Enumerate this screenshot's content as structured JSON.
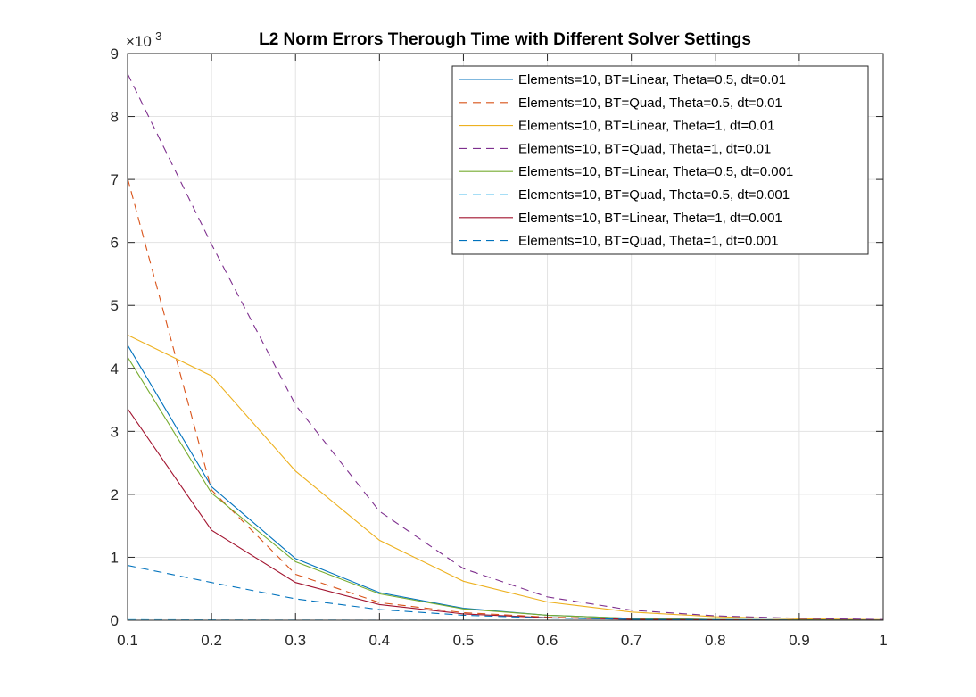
{
  "chart_data": {
    "type": "line",
    "title": "L2 Norm Errors Therough Time with Different Solver Settings",
    "xlabel": "",
    "ylabel": "",
    "y_exponent_label": "×10",
    "y_exponent_power": "-3",
    "xlim": [
      0.1,
      1
    ],
    "ylim": [
      0,
      9
    ],
    "x_tick_labels": [
      "0.1",
      "0.2",
      "0.3",
      "0.4",
      "0.5",
      "0.6",
      "0.7",
      "0.8",
      "0.9",
      "1"
    ],
    "x_tick_values": [
      0.1,
      0.2,
      0.3,
      0.4,
      0.5,
      0.6,
      0.7,
      0.8,
      0.9,
      1.0
    ],
    "y_tick_labels": [
      "0",
      "1",
      "2",
      "3",
      "4",
      "5",
      "6",
      "7",
      "8",
      "9"
    ],
    "y_tick_values": [
      0,
      1,
      2,
      3,
      4,
      5,
      6,
      7,
      8,
      9
    ],
    "grid": true,
    "legend_position": "top-right",
    "x": [
      0.1,
      0.2,
      0.3,
      0.4,
      0.5,
      0.6,
      0.7,
      0.8,
      0.9,
      1.0
    ],
    "series": [
      {
        "name": "Elements=10, BT=Linear, Theta=0.5, dt=0.01",
        "color": "#0072BD",
        "dash": "solid",
        "values": [
          4.37,
          2.12,
          0.98,
          0.44,
          0.19,
          0.08,
          0.03,
          0.013,
          0.005,
          0.002
        ]
      },
      {
        "name": "Elements=10, BT=Quad, Theta=0.5, dt=0.01",
        "color": "#D95319",
        "dash": "dashed",
        "values": [
          7.02,
          2.07,
          0.73,
          0.28,
          0.12,
          0.05,
          0.02,
          0.008,
          0.003,
          0.001
        ]
      },
      {
        "name": "Elements=10, BT=Linear, Theta=1, dt=0.01",
        "color": "#EDB120",
        "dash": "solid",
        "values": [
          4.53,
          3.88,
          2.37,
          1.27,
          0.62,
          0.29,
          0.13,
          0.055,
          0.023,
          0.01
        ]
      },
      {
        "name": "Elements=10, BT=Quad, Theta=1, dt=0.01",
        "color": "#7E2F8E",
        "dash": "dashed",
        "values": [
          8.68,
          5.97,
          3.42,
          1.73,
          0.82,
          0.37,
          0.16,
          0.07,
          0.03,
          0.012
        ]
      },
      {
        "name": "Elements=10, BT=Linear, Theta=0.5, dt=0.001",
        "color": "#77AC30",
        "dash": "solid",
        "values": [
          4.18,
          2.02,
          0.93,
          0.42,
          0.18,
          0.08,
          0.03,
          0.012,
          0.005,
          0.002
        ]
      },
      {
        "name": "Elements=10, BT=Quad, Theta=0.5, dt=0.001",
        "color": "#4DBEEE",
        "dash": "dashed",
        "values": [
          0.01,
          0.005,
          0.003,
          0.002,
          0.001,
          0.0005,
          0.0003,
          0.0002,
          0.0001,
          0.0001
        ]
      },
      {
        "name": "Elements=10, BT=Linear, Theta=1, dt=0.001",
        "color": "#A2142F",
        "dash": "solid",
        "values": [
          3.36,
          1.43,
          0.6,
          0.25,
          0.1,
          0.04,
          0.016,
          0.006,
          0.002,
          0.001
        ]
      },
      {
        "name": "Elements=10, BT=Quad, Theta=1, dt=0.001",
        "color": "#0072BD",
        "dash": "dashed",
        "values": [
          0.87,
          0.6,
          0.34,
          0.17,
          0.08,
          0.035,
          0.015,
          0.006,
          0.002,
          0.001
        ]
      }
    ]
  }
}
